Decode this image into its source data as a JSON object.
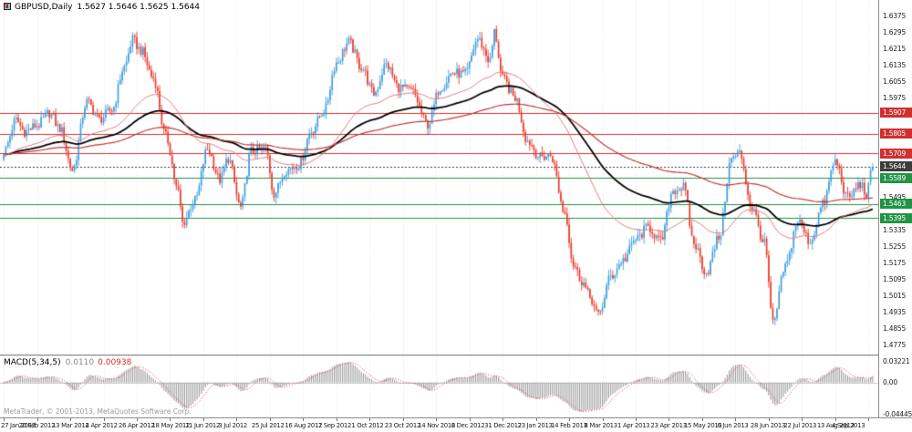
{
  "header": {
    "symbol_label": "GBPUSD,Daily",
    "ohlc_text": "1.5627 1.5646 1.5625 1.5644"
  },
  "indicator": {
    "label": "MACD(5,34,5)",
    "main_value": "0.0110",
    "signal_value": "0.00938"
  },
  "footer": {
    "watermark": "MetaTrader, © 2001-2013, MetaQuotes Software Corp."
  },
  "colors": {
    "background": "#ffffff",
    "up": "#3d9fe0",
    "down": "#ec3a2b",
    "grid": "#e4e4e4",
    "hist": "#9b9b9b",
    "signal": "#d03030",
    "zero_line": "#c8c8c8",
    "scale_text": "#1c1c1c",
    "axis_border": "#8c8c8c"
  },
  "chart_data": [
    {
      "type": "candlestick",
      "title": "GBPUSD Daily",
      "symbol": "GBPUSD",
      "timeframe": "Daily",
      "grid": "vertical-dotted",
      "current_bar": {
        "open": 1.5627,
        "high": 1.5646,
        "low": 1.5625,
        "close": 1.5644
      },
      "ylim": [
        1.4731,
        1.6455
      ],
      "y_ticks": [
        1.6375,
        1.6295,
        1.6215,
        1.6135,
        1.6055,
        1.5975,
        1.5895,
        1.5815,
        1.5735,
        1.5655,
        1.5575,
        1.5495,
        1.5415,
        1.5335,
        1.5255,
        1.5175,
        1.5095,
        1.5015,
        1.4935,
        1.4855,
        1.4775
      ],
      "x_tick_labels": [
        "27 Jan 2012",
        "20 Feb 2012",
        "13 Mar 2012",
        "4 Apr 2012",
        "26 Apr 2012",
        "18 May 2012",
        "11 Jun 2012",
        "3 Jul 2012",
        "25 Jul 2012",
        "16 Aug 2012",
        "7 Sep 2012",
        "1 Oct 2012",
        "23 Oct 2012",
        "14 Nov 2012",
        "6 Dec 2012",
        "31 Dec 2012",
        "23 Jan 2013",
        "14 Feb 2013",
        "8 Mar 2013",
        "1 Apr 2013",
        "23 Apr 2013",
        "15 May 2013",
        "6 Jun 2013",
        "28 Jun 2013",
        "22 Jul 2013",
        "13 Aug 2013",
        "4 Sep 2013"
      ],
      "bars_per_tick": 16,
      "n_bars": 419,
      "daily_noise": 0.005,
      "wick_noise": 0.0032,
      "price_anchors": [
        [
          0,
          1.572
        ],
        [
          6,
          1.587
        ],
        [
          10,
          1.5815
        ],
        [
          16,
          1.5845
        ],
        [
          22,
          1.5905
        ],
        [
          27,
          1.583
        ],
        [
          33,
          1.563
        ],
        [
          40,
          1.596
        ],
        [
          46,
          1.5875
        ],
        [
          52,
          1.592
        ],
        [
          58,
          1.613
        ],
        [
          62,
          1.626
        ],
        [
          66,
          1.621
        ],
        [
          72,
          1.6075
        ],
        [
          78,
          1.579
        ],
        [
          84,
          1.552
        ],
        [
          86,
          1.537
        ],
        [
          92,
          1.548
        ],
        [
          98,
          1.573
        ],
        [
          104,
          1.558
        ],
        [
          108,
          1.5685
        ],
        [
          114,
          1.5445
        ],
        [
          119,
          1.572
        ],
        [
          126,
          1.573
        ],
        [
          130,
          1.5515
        ],
        [
          136,
          1.563
        ],
        [
          142,
          1.5655
        ],
        [
          148,
          1.582
        ],
        [
          154,
          1.5915
        ],
        [
          160,
          1.615
        ],
        [
          166,
          1.625
        ],
        [
          172,
          1.613
        ],
        [
          178,
          1.6
        ],
        [
          184,
          1.614
        ],
        [
          190,
          1.603
        ],
        [
          196,
          1.6015
        ],
        [
          204,
          1.585
        ],
        [
          210,
          1.603
        ],
        [
          216,
          1.61
        ],
        [
          222,
          1.6095
        ],
        [
          228,
          1.6265
        ],
        [
          234,
          1.616
        ],
        [
          236,
          1.63
        ],
        [
          240,
          1.607
        ],
        [
          246,
          1.598
        ],
        [
          252,
          1.577
        ],
        [
          258,
          1.569
        ],
        [
          263,
          1.57
        ],
        [
          270,
          1.542
        ],
        [
          274,
          1.517
        ],
        [
          278,
          1.509
        ],
        [
          282,
          1.501
        ],
        [
          286,
          1.492
        ],
        [
          292,
          1.511
        ],
        [
          298,
          1.519
        ],
        [
          304,
          1.529
        ],
        [
          310,
          1.535
        ],
        [
          316,
          1.528
        ],
        [
          322,
          1.553
        ],
        [
          327,
          1.5545
        ],
        [
          332,
          1.527
        ],
        [
          338,
          1.513
        ],
        [
          344,
          1.53
        ],
        [
          350,
          1.568
        ],
        [
          354,
          1.571
        ],
        [
          360,
          1.544
        ],
        [
          366,
          1.527
        ],
        [
          370,
          1.488
        ],
        [
          376,
          1.516
        ],
        [
          382,
          1.538
        ],
        [
          388,
          1.528
        ],
        [
          394,
          1.546
        ],
        [
          400,
          1.567
        ],
        [
          406,
          1.549
        ],
        [
          412,
          1.556
        ],
        [
          415,
          1.551
        ],
        [
          418,
          1.5644
        ]
      ],
      "levels": [
        {
          "price": 1.5907,
          "color": "#d03030",
          "style": "solid",
          "role": "resistance"
        },
        {
          "price": 1.5805,
          "color": "#d03030",
          "style": "solid",
          "role": "resistance"
        },
        {
          "price": 1.5709,
          "color": "#d03030",
          "style": "solid",
          "role": "resistance"
        },
        {
          "price": 1.5644,
          "color": "#3d3d3d",
          "style": "dotted",
          "role": "last-price"
        },
        {
          "price": 1.5589,
          "color": "#229344",
          "style": "solid",
          "role": "support"
        },
        {
          "price": 1.5463,
          "color": "#229344",
          "style": "solid",
          "role": "support"
        },
        {
          "price": 1.5395,
          "color": "#229344",
          "style": "solid",
          "role": "support"
        }
      ],
      "overlays": [
        {
          "name": "slow MA (black)",
          "period": 100,
          "color": "#000000",
          "width": 1.8
        },
        {
          "name": "long MA (red)",
          "period": 200,
          "color": "#c03a3a",
          "width": 1.2
        },
        {
          "name": "short MA (light red)",
          "period": 55,
          "color": "#e07b7b",
          "width": 1
        }
      ]
    },
    {
      "type": "macd",
      "label": "MACD(5,34,5)",
      "fast": 5,
      "slow": 34,
      "signal": 5,
      "ylim": [
        -0.048,
        0.036
      ],
      "y_ticks": [
        {
          "v": 0.03221,
          "label": "0.03221"
        },
        {
          "v": 0,
          "label": "0.00"
        },
        {
          "v": -0.04445,
          "label": "-0.04445"
        }
      ],
      "current_main": 0.011,
      "current_signal": 0.00938
    }
  ]
}
